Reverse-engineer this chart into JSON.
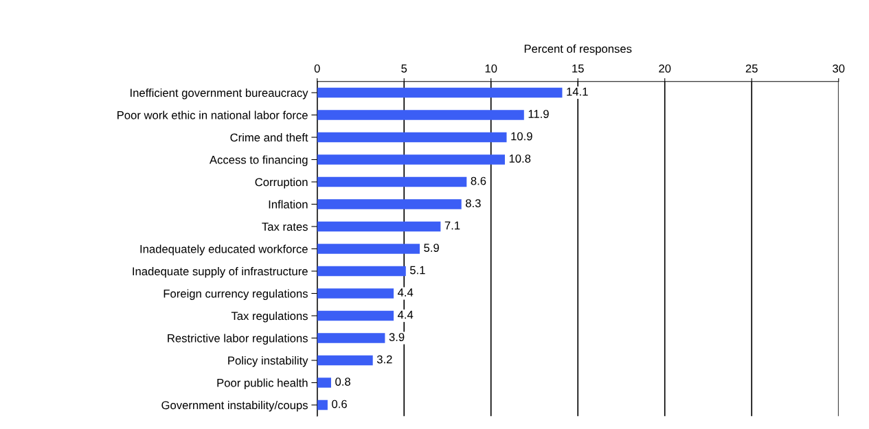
{
  "chart_data": {
    "type": "bar",
    "orientation": "horizontal",
    "xlabel": "Percent of responses",
    "categories": [
      "Inefficient government bureaucracy",
      "Poor work ethic in national labor force",
      "Crime and theft",
      "Access to financing",
      "Corruption",
      "Inflation",
      "Tax rates",
      "Inadequately educated workforce",
      "Inadequate supply of infrastructure",
      "Foreign currency regulations",
      "Tax regulations",
      "Restrictive labor regulations",
      "Policy instability",
      "Poor public health",
      "Government instability/coups"
    ],
    "values": [
      14.1,
      11.9,
      10.9,
      10.8,
      8.6,
      8.3,
      7.1,
      5.9,
      5.1,
      4.4,
      4.4,
      3.9,
      3.2,
      0.8,
      0.6
    ],
    "color": "#3b5ef5",
    "xlim": [
      0,
      30
    ],
    "xticks": [
      0,
      5,
      10,
      15,
      20,
      25,
      30
    ],
    "grid": "x",
    "data_labels": true
  }
}
